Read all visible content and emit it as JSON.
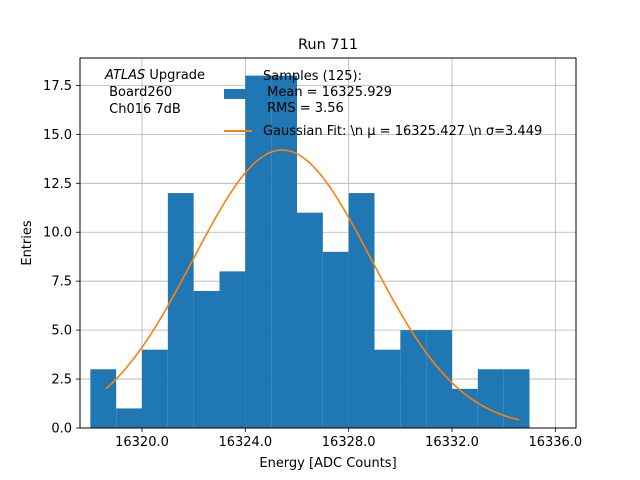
{
  "chart_data": {
    "type": "bar",
    "title": "Run 711",
    "xlabel": "Energy [ADC Counts]",
    "ylabel": "Entries",
    "xlim": [
      16317.6,
      16336.8
    ],
    "ylim": [
      0,
      18.9
    ],
    "grid": true,
    "x_ticks": [
      16320.0,
      16324.0,
      16328.0,
      16332.0,
      16336.0
    ],
    "x_tick_labels": [
      "16320.0",
      "16324.0",
      "16328.0",
      "16332.0",
      "16336.0"
    ],
    "y_ticks": [
      0.0,
      2.5,
      5.0,
      7.5,
      10.0,
      12.5,
      15.0,
      17.5
    ],
    "y_tick_labels": [
      "0.0",
      "2.5",
      "5.0",
      "7.5",
      "10.0",
      "12.5",
      "15.0",
      "17.5"
    ],
    "histogram": {
      "bin_edges": [
        16318.0,
        16319.0,
        16320.0,
        16321.0,
        16322.0,
        16323.0,
        16324.0,
        16325.0,
        16326.0,
        16327.0,
        16328.0,
        16329.0,
        16330.0,
        16331.0,
        16332.0,
        16333.0,
        16334.0,
        16335.0
      ],
      "counts": [
        3,
        1,
        4,
        12,
        7,
        8,
        18,
        18,
        11,
        9,
        12,
        4,
        5,
        5,
        2,
        3,
        3
      ],
      "color": "#1f77b4"
    },
    "fit": {
      "type": "gaussian",
      "mu": 16325.427,
      "sigma": 3.449,
      "amplitude": 14.2,
      "x_range": [
        16318.6,
        16334.6
      ],
      "color": "#ff7f0e"
    },
    "legend": {
      "placement": "top-right",
      "entries": [
        {
          "label_lines": [
            "Samples (125):",
            " Mean = 16325.929",
            " RMS = 3.56"
          ],
          "kind": "patch",
          "color": "#1f77b4"
        },
        {
          "label_lines": [
            "Gaussian Fit: \\n μ = 16325.427 \\n σ=3.449"
          ],
          "kind": "line",
          "color": "#ff7f0e"
        }
      ]
    },
    "annotation": {
      "lines": [
        "ATLAS Upgrade",
        " Board260",
        " Ch016 7dB"
      ],
      "italic_word": "ATLAS",
      "rest_first_line": " Upgrade"
    }
  }
}
